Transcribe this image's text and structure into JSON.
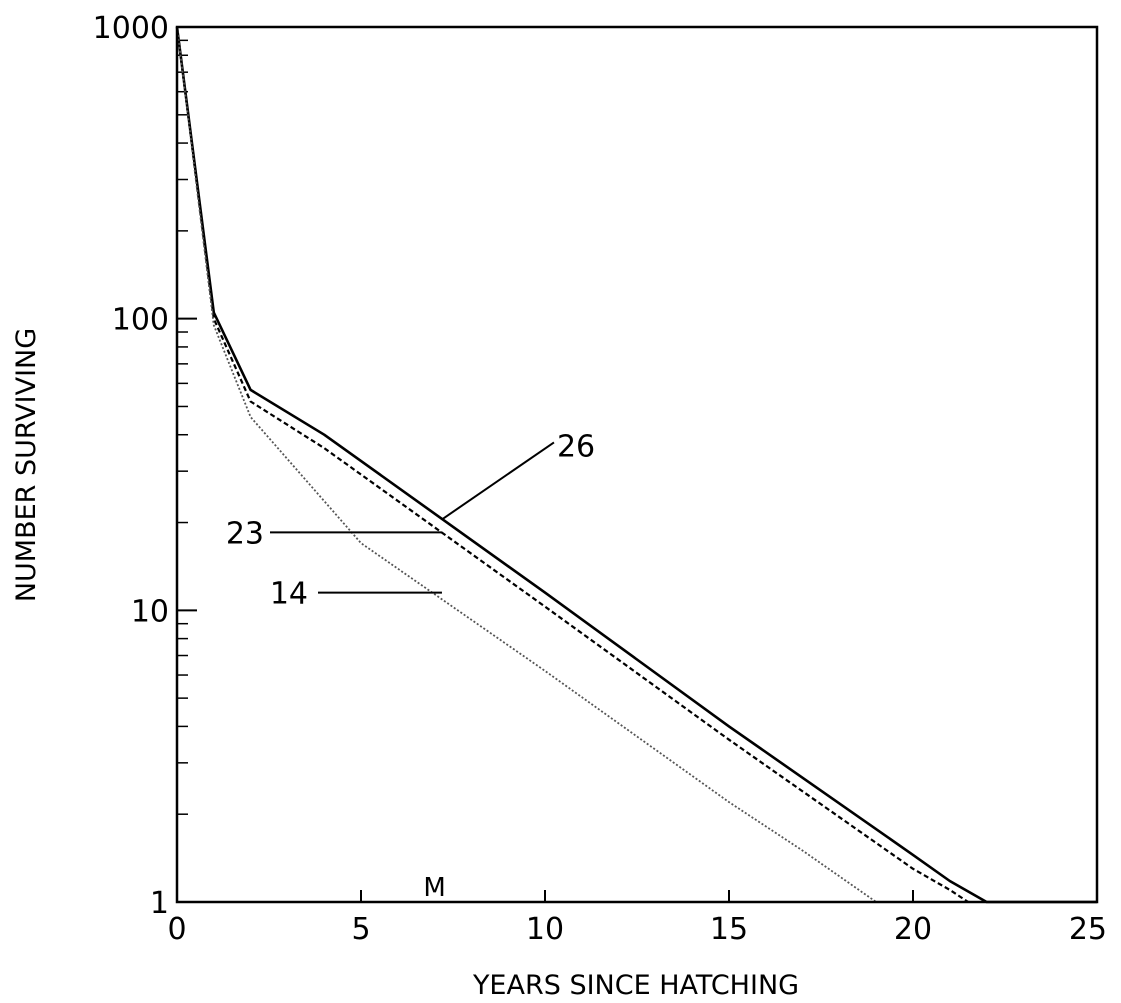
{
  "chart_data": {
    "type": "line",
    "title": "",
    "xlabel": "YEARS SINCE HATCHING",
    "ylabel": "NUMBER SURVIVING",
    "x_scale": "linear",
    "y_scale": "log",
    "xlim": [
      0,
      25
    ],
    "ylim": [
      1,
      1000
    ],
    "x_ticks": [
      0,
      5,
      10,
      15,
      20,
      25
    ],
    "x_tick_labels": [
      "0",
      "5",
      "10",
      "15",
      "20",
      "25"
    ],
    "y_ticks": [
      1,
      10,
      100,
      1000
    ],
    "y_tick_labels": [
      "1",
      "10",
      "100",
      "1000"
    ],
    "grid": false,
    "legend": "none",
    "annotations": [
      {
        "text": "M",
        "x": 7.0,
        "y": 1.0
      }
    ],
    "series": [
      {
        "name": "26",
        "style": "solid",
        "color": "#000000",
        "label_point": {
          "x": 7.2,
          "y": 20.5
        },
        "points": [
          {
            "x": 0,
            "y": 1000
          },
          {
            "x": 1,
            "y": 105
          },
          {
            "x": 2,
            "y": 57
          },
          {
            "x": 4,
            "y": 40
          },
          {
            "x": 10,
            "y": 11.5
          },
          {
            "x": 15,
            "y": 4.0
          },
          {
            "x": 20,
            "y": 1.45
          },
          {
            "x": 21,
            "y": 1.18
          },
          {
            "x": 22,
            "y": 1.0
          },
          {
            "x": 25,
            "y": 1.0
          }
        ]
      },
      {
        "name": "23",
        "style": "dashed",
        "color": "#000000",
        "label_point": {
          "x": 7.2,
          "y": 18.5
        },
        "points": [
          {
            "x": 0,
            "y": 1000
          },
          {
            "x": 1,
            "y": 100
          },
          {
            "x": 2,
            "y": 52
          },
          {
            "x": 4,
            "y": 36
          },
          {
            "x": 10,
            "y": 10.3
          },
          {
            "x": 15,
            "y": 3.6
          },
          {
            "x": 20,
            "y": 1.3
          },
          {
            "x": 21,
            "y": 1.1
          },
          {
            "x": 21.5,
            "y": 1.0
          }
        ]
      },
      {
        "name": "14",
        "style": "dotted",
        "color": "#555555",
        "label_point": {
          "x": 7.2,
          "y": 11.5
        },
        "points": [
          {
            "x": 0,
            "y": 1000
          },
          {
            "x": 1,
            "y": 95
          },
          {
            "x": 2,
            "y": 46
          },
          {
            "x": 5,
            "y": 17
          },
          {
            "x": 10,
            "y": 6.2
          },
          {
            "x": 15,
            "y": 2.2
          },
          {
            "x": 17,
            "y": 1.5
          },
          {
            "x": 19,
            "y": 1.0
          }
        ]
      }
    ]
  }
}
